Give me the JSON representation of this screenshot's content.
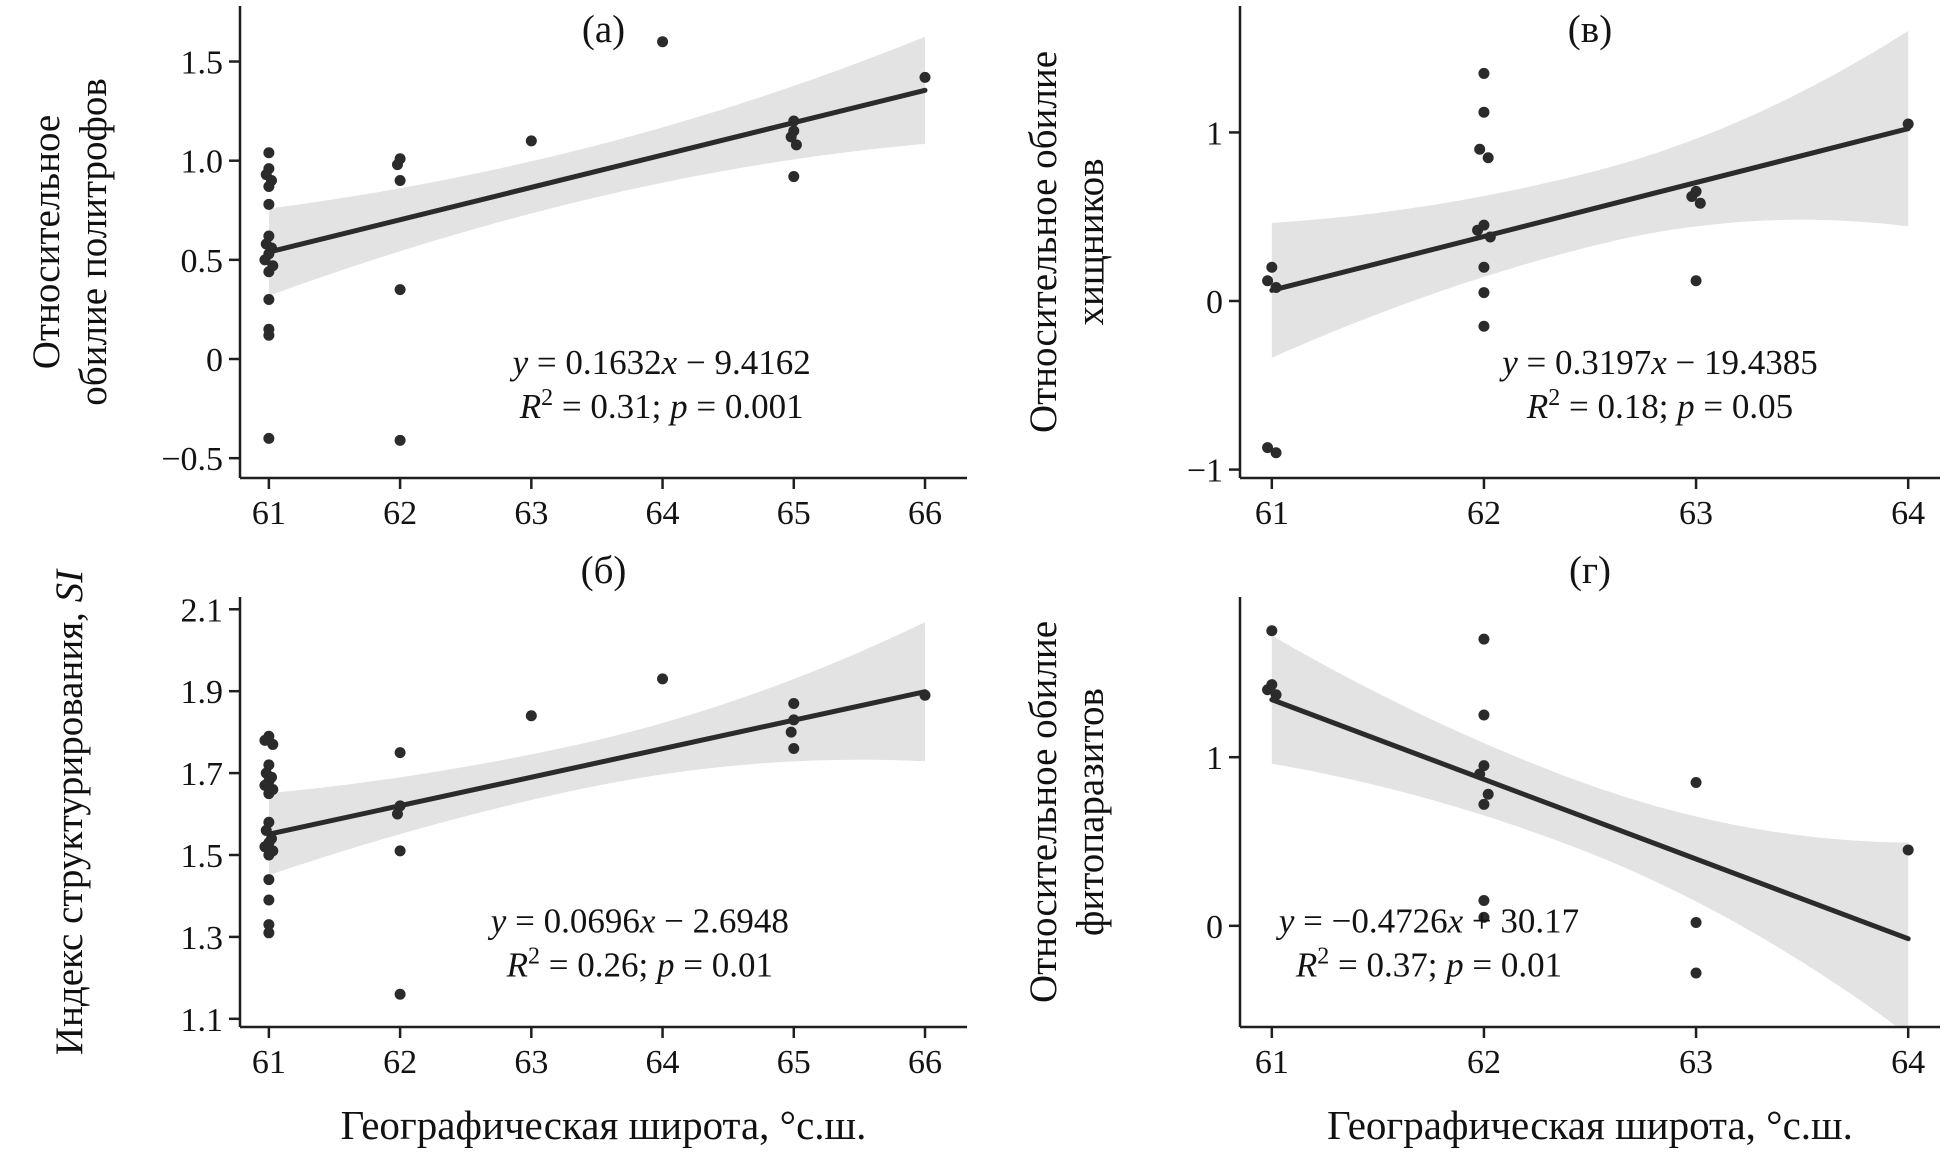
{
  "figure": {
    "xlabel": "Географическая широта, °с.ш.",
    "colors": {
      "points": "#2b2b2b",
      "line": "#2b2b2b",
      "band": "#e3e3e3",
      "axis": "#1f1f1f",
      "text": "#131313",
      "background": "#ffffff"
    }
  },
  "chart_data": [
    {
      "id": "a",
      "type": "scatter",
      "position": "top-left",
      "panel_label": "(а)",
      "ylabel_lines": [
        [
          {
            "t": "Относительное"
          }
        ],
        [
          {
            "t": "обилие политрофов"
          }
        ]
      ],
      "xlim": [
        60.78,
        66.32
      ],
      "ylim": [
        -0.6,
        1.78
      ],
      "xticks": [
        61,
        62,
        63,
        64,
        65,
        66
      ],
      "xtick_labels": [
        "61",
        "62",
        "63",
        "64",
        "65",
        "66"
      ],
      "yticks": [
        -0.5,
        0,
        0.5,
        1.0,
        1.5
      ],
      "ytick_labels": [
        "−0.5",
        "0",
        "0.5",
        "1.0",
        "1.5"
      ],
      "points": [
        [
          61,
          1.04
        ],
        [
          61,
          0.96
        ],
        [
          60.98,
          0.93
        ],
        [
          61.02,
          0.9
        ],
        [
          61,
          0.87
        ],
        [
          61,
          0.78
        ],
        [
          61,
          0.62
        ],
        [
          60.98,
          0.58
        ],
        [
          61.02,
          0.56
        ],
        [
          61,
          0.53
        ],
        [
          60.97,
          0.5
        ],
        [
          61.03,
          0.47
        ],
        [
          61,
          0.44
        ],
        [
          61,
          0.3
        ],
        [
          61,
          0.15
        ],
        [
          61,
          0.12
        ],
        [
          61,
          -0.4
        ],
        [
          62,
          1.01
        ],
        [
          61.98,
          0.98
        ],
        [
          62,
          0.9
        ],
        [
          62,
          0.35
        ],
        [
          62,
          -0.41
        ],
        [
          63,
          1.1
        ],
        [
          64,
          1.6
        ],
        [
          65,
          1.2
        ],
        [
          65,
          1.15
        ],
        [
          64.98,
          1.12
        ],
        [
          65.02,
          1.08
        ],
        [
          65,
          0.92
        ],
        [
          66,
          1.42
        ]
      ],
      "regression": {
        "slope": 0.1632,
        "intercept": -9.4162,
        "x_start": 61,
        "x_end": 66
      },
      "band": {
        "x_center": 63.3,
        "half_center": 0.13,
        "half_left": 0.22,
        "half_right": 0.27
      },
      "equation": {
        "x": 0.58,
        "y": 0.78,
        "lines": [
          [
            {
              "t": "y",
              "i": 1
            },
            {
              "t": " = 0.1632"
            },
            {
              "t": "x",
              "i": 1
            },
            {
              "t": " − 9.4162"
            }
          ],
          [
            {
              "t": "R",
              "i": 1
            },
            {
              "t": "2",
              "sup": 1
            },
            {
              "t": " = 0.31; "
            },
            {
              "t": "p",
              "i": 1
            },
            {
              "t": " = 0.001"
            }
          ]
        ]
      }
    },
    {
      "id": "v",
      "type": "scatter",
      "position": "top-right",
      "panel_label": "(в)",
      "ylabel_lines": [
        [
          {
            "t": "Относительное обилие"
          }
        ],
        [
          {
            "t": "хищников"
          }
        ]
      ],
      "xlim": [
        60.85,
        64.15
      ],
      "ylim": [
        -1.05,
        1.75
      ],
      "xticks": [
        61,
        62,
        63,
        64
      ],
      "xtick_labels": [
        "61",
        "62",
        "63",
        "64"
      ],
      "yticks": [
        -1,
        0,
        1
      ],
      "ytick_labels": [
        "−1",
        "0",
        "1"
      ],
      "points": [
        [
          61,
          0.2
        ],
        [
          60.98,
          0.12
        ],
        [
          61.02,
          0.08
        ],
        [
          60.98,
          -0.87
        ],
        [
          61.02,
          -0.9
        ],
        [
          62,
          1.35
        ],
        [
          62,
          1.12
        ],
        [
          61.98,
          0.9
        ],
        [
          62.02,
          0.85
        ],
        [
          62,
          0.45
        ],
        [
          61.97,
          0.42
        ],
        [
          62.03,
          0.38
        ],
        [
          62,
          0.2
        ],
        [
          62,
          0.05
        ],
        [
          62,
          -0.15
        ],
        [
          63,
          0.65
        ],
        [
          62.98,
          0.62
        ],
        [
          63.02,
          0.58
        ],
        [
          63,
          0.12
        ],
        [
          64,
          1.05
        ]
      ],
      "regression": {
        "slope": 0.3197,
        "intercept": -19.4385,
        "x_start": 61,
        "x_end": 64
      },
      "band": {
        "x_center": 62.5,
        "half_center": 0.22,
        "half_left": 0.4,
        "half_right": 0.58
      },
      "equation": {
        "x": 0.6,
        "y": 0.78,
        "lines": [
          [
            {
              "t": "y",
              "i": 1
            },
            {
              "t": " = 0.3197"
            },
            {
              "t": "x",
              "i": 1
            },
            {
              "t": " − 19.4385"
            }
          ],
          [
            {
              "t": "R",
              "i": 1
            },
            {
              "t": "2",
              "sup": 1
            },
            {
              "t": " = 0.18; "
            },
            {
              "t": "p",
              "i": 1
            },
            {
              "t": " = 0.05"
            }
          ]
        ]
      }
    },
    {
      "id": "b",
      "type": "scatter",
      "position": "bottom-left",
      "panel_label": "(б)",
      "ylabel_lines": [
        [
          {
            "t": "Индекс структурирования, "
          },
          {
            "t": "SI",
            "i": 1
          }
        ]
      ],
      "xlim": [
        60.78,
        66.32
      ],
      "ylim": [
        1.08,
        2.13
      ],
      "xticks": [
        61,
        62,
        63,
        64,
        65,
        66
      ],
      "xtick_labels": [
        "61",
        "62",
        "63",
        "64",
        "65",
        "66"
      ],
      "yticks": [
        1.1,
        1.3,
        1.5,
        1.7,
        1.9,
        2.1
      ],
      "ytick_labels": [
        "1.1",
        "1.3",
        "1.5",
        "1.7",
        "1.9",
        "2.1"
      ],
      "points": [
        [
          61,
          1.79
        ],
        [
          60.97,
          1.78
        ],
        [
          61.03,
          1.77
        ],
        [
          61,
          1.72
        ],
        [
          60.98,
          1.7
        ],
        [
          61.02,
          1.69
        ],
        [
          61,
          1.68
        ],
        [
          60.97,
          1.67
        ],
        [
          61.03,
          1.66
        ],
        [
          61,
          1.65
        ],
        [
          61,
          1.58
        ],
        [
          60.98,
          1.56
        ],
        [
          61.02,
          1.54
        ],
        [
          61,
          1.53
        ],
        [
          60.97,
          1.52
        ],
        [
          61.03,
          1.51
        ],
        [
          61,
          1.5
        ],
        [
          61,
          1.44
        ],
        [
          61,
          1.39
        ],
        [
          61,
          1.33
        ],
        [
          61,
          1.31
        ],
        [
          62,
          1.75
        ],
        [
          62,
          1.62
        ],
        [
          61.98,
          1.6
        ],
        [
          62,
          1.51
        ],
        [
          62,
          1.16
        ],
        [
          63,
          1.84
        ],
        [
          64,
          1.93
        ],
        [
          65,
          1.87
        ],
        [
          65,
          1.83
        ],
        [
          64.98,
          1.8
        ],
        [
          65,
          1.76
        ],
        [
          66,
          1.89
        ]
      ],
      "regression": {
        "slope": 0.0696,
        "intercept": -2.6948,
        "x_start": 61,
        "x_end": 66
      },
      "band": {
        "x_center": 63.3,
        "half_center": 0.055,
        "half_left": 0.1,
        "half_right": 0.17
      },
      "equation": {
        "x": 0.55,
        "y": 0.78,
        "lines": [
          [
            {
              "t": "y",
              "i": 1
            },
            {
              "t": " = 0.0696"
            },
            {
              "t": "x",
              "i": 1
            },
            {
              "t": " − 2.6948"
            }
          ],
          [
            {
              "t": "R",
              "i": 1
            },
            {
              "t": "2",
              "sup": 1
            },
            {
              "t": " = 0.26; "
            },
            {
              "t": "p",
              "i": 1
            },
            {
              "t": " = 0.01"
            }
          ]
        ]
      }
    },
    {
      "id": "g",
      "type": "scatter",
      "position": "bottom-right",
      "panel_label": "(г)",
      "ylabel_lines": [
        [
          {
            "t": "Относительное обилие"
          }
        ],
        [
          {
            "t": "фитопаразитов"
          }
        ]
      ],
      "xlim": [
        60.85,
        64.15
      ],
      "ylim": [
        -0.6,
        1.95
      ],
      "xticks": [
        61,
        62,
        63,
        64
      ],
      "xtick_labels": [
        "61",
        "62",
        "63",
        "64"
      ],
      "yticks": [
        0,
        1
      ],
      "ytick_labels": [
        "0",
        "1"
      ],
      "points": [
        [
          61,
          1.75
        ],
        [
          61,
          1.43
        ],
        [
          60.98,
          1.4
        ],
        [
          61.02,
          1.37
        ],
        [
          62,
          1.7
        ],
        [
          62,
          1.25
        ],
        [
          62,
          0.95
        ],
        [
          61.98,
          0.9
        ],
        [
          62.02,
          0.78
        ],
        [
          62,
          0.72
        ],
        [
          62,
          0.15
        ],
        [
          62,
          0.05
        ],
        [
          63,
          0.85
        ],
        [
          63,
          0.02
        ],
        [
          63,
          -0.28
        ],
        [
          64,
          0.45
        ]
      ],
      "regression": {
        "slope": -0.4726,
        "intercept": 30.17,
        "x_start": 61,
        "x_end": 64
      },
      "band": {
        "x_center": 62.4,
        "half_center": 0.2,
        "half_left": 0.38,
        "half_right": 0.57
      },
      "equation": {
        "x": 0.27,
        "y": 0.78,
        "lines": [
          [
            {
              "t": "y",
              "i": 1
            },
            {
              "t": " = −0.4726"
            },
            {
              "t": "x",
              "i": 1
            },
            {
              "t": " + 30.17"
            }
          ],
          [
            {
              "t": "R",
              "i": 1
            },
            {
              "t": "2",
              "sup": 1
            },
            {
              "t": " = 0.37; "
            },
            {
              "t": "p",
              "i": 1
            },
            {
              "t": " = 0.01"
            }
          ]
        ]
      }
    }
  ]
}
